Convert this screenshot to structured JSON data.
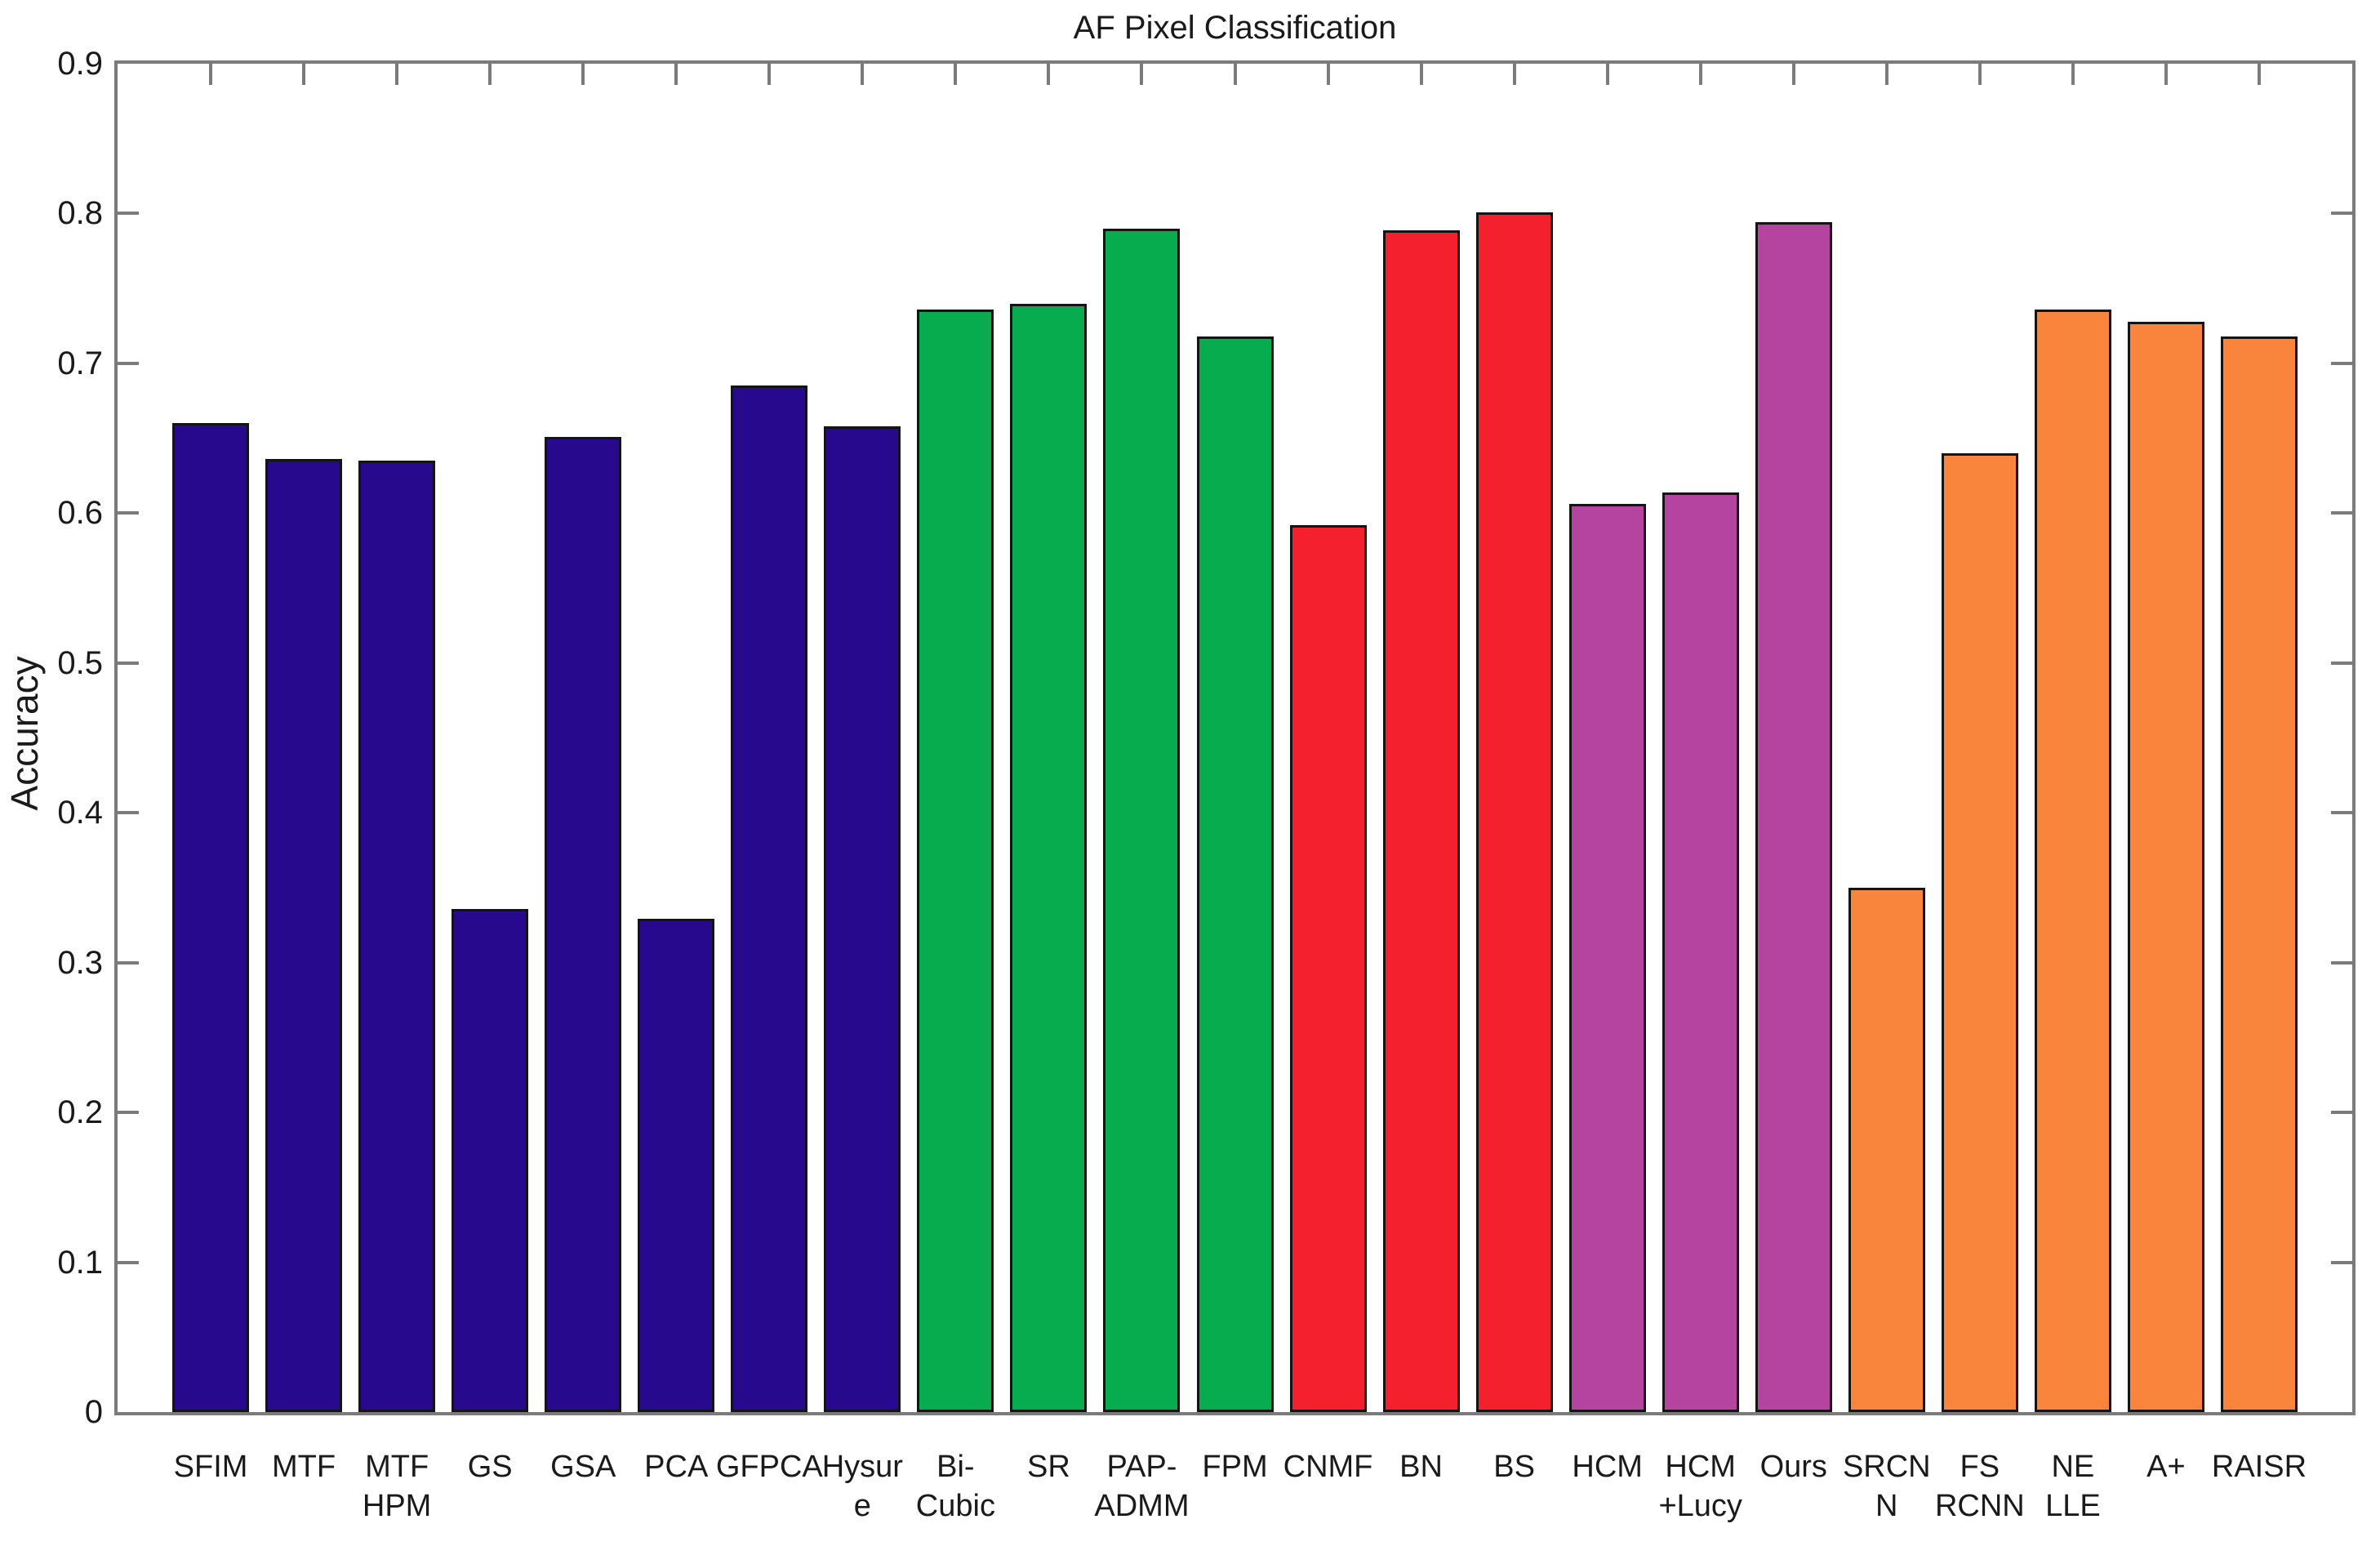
{
  "title": "AF Pixel Classification",
  "y_axis": {
    "label": "Accuracy",
    "tick_labels": [
      "0",
      "0.1",
      "0.2",
      "0.3",
      "0.4",
      "0.5",
      "0.6",
      "0.7",
      "0.8",
      "0.9"
    ],
    "min": 0,
    "max": 0.9
  },
  "colors": {
    "navy": "#26098c",
    "green": "#07ac4e",
    "red": "#f5202e",
    "purple": "#b544a0",
    "orange": "#f8853b",
    "axis": "#7b7b7b",
    "text": "#1a1a1a",
    "bar_outline": "#141414",
    "background": "#ffffff"
  },
  "chart_data": {
    "type": "bar",
    "title": "AF Pixel Classification",
    "xlabel": "",
    "ylabel": "Accuracy",
    "ylim": [
      0,
      0.9
    ],
    "yticks": [
      0,
      0.1,
      0.2,
      0.3,
      0.4,
      0.5,
      0.6,
      0.7,
      0.8,
      0.9
    ],
    "grid": false,
    "legend": null,
    "categories": [
      "SFIM",
      "MTF",
      "MTF HPM",
      "GS",
      "GSA",
      "PCA",
      "GFPCA",
      "Hysure",
      "Bi-Cubic",
      "SR",
      "PAP-ADMM",
      "FPM",
      "CNMF",
      "BN",
      "BS",
      "HCM",
      "HCM+Lucy",
      "Ours",
      "SRCNN",
      "FSRCNN",
      "NELLE",
      "A+",
      "RAISR"
    ],
    "tick_display": [
      "SFIM",
      "MTF",
      "MTF\nHPM",
      "GS",
      "GSA",
      "PCA",
      "GFPCA",
      "Hysur\ne",
      "Bi-\nCubic",
      "SR",
      "PAP-\nADMM",
      "FPM",
      "CNMF",
      "BN",
      "BS",
      "HCM",
      "HCM\n+Lucy",
      "Ours",
      "SRCN\nN",
      "FS\nRCNN",
      "NE\nLLE",
      "A+",
      "RAISR"
    ],
    "values": [
      0.66,
      0.636,
      0.635,
      0.336,
      0.651,
      0.329,
      0.685,
      0.658,
      0.736,
      0.74,
      0.79,
      0.718,
      0.592,
      0.789,
      0.801,
      0.606,
      0.614,
      0.794,
      0.35,
      0.64,
      0.736,
      0.728,
      0.718
    ],
    "bar_color_groups": [
      "navy",
      "navy",
      "navy",
      "navy",
      "navy",
      "navy",
      "navy",
      "navy",
      "green",
      "green",
      "green",
      "green",
      "red",
      "red",
      "red",
      "purple",
      "purple",
      "purple",
      "orange",
      "orange",
      "orange",
      "orange",
      "orange"
    ]
  }
}
